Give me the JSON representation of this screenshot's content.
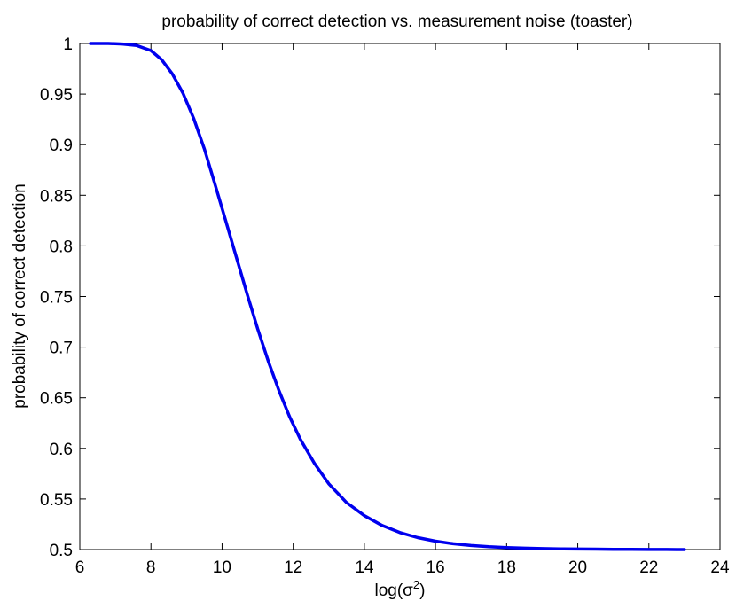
{
  "chart_data": {
    "type": "line",
    "title": "probability of correct detection vs. measurement noise (toaster)",
    "xlabel_base": "log(σ",
    "xlabel_sup": "2",
    "xlabel_tail": ")",
    "ylabel": "probability of correct detection",
    "xlim": [
      6,
      24
    ],
    "ylim": [
      0.5,
      1
    ],
    "xticks": [
      6,
      8,
      10,
      12,
      14,
      16,
      18,
      20,
      22,
      24
    ],
    "yticks": [
      0.5,
      0.55,
      0.6,
      0.65,
      0.7,
      0.75,
      0.8,
      0.85,
      0.9,
      0.95,
      1
    ],
    "ytick_labels": [
      "0.5",
      "0.55",
      "0.6",
      "0.65",
      "0.7",
      "0.75",
      "0.8",
      "0.85",
      "0.9",
      "0.95",
      "1"
    ],
    "grid": false,
    "line_color": "#0000ee",
    "series": [
      {
        "x": [
          6.3,
          6.8,
          7.2,
          7.6,
          8.0,
          8.3,
          8.6,
          8.9,
          9.2,
          9.5,
          9.8,
          10.1,
          10.4,
          10.7,
          11.0,
          11.3,
          11.6,
          11.9,
          12.2,
          12.6,
          13.0,
          13.5,
          14.0,
          14.5,
          15.0,
          15.5,
          16.0,
          16.5,
          17.0,
          17.5,
          18.0,
          18.5,
          19.0,
          19.5,
          20.0,
          20.5,
          21.0,
          21.5,
          22.0,
          22.5,
          23.0
        ],
        "y": [
          1.0,
          1.0,
          0.9995,
          0.998,
          0.993,
          0.984,
          0.97,
          0.951,
          0.926,
          0.896,
          0.861,
          0.825,
          0.789,
          0.753,
          0.718,
          0.686,
          0.657,
          0.631,
          0.609,
          0.585,
          0.565,
          0.5465,
          0.5335,
          0.5238,
          0.5168,
          0.5118,
          0.5083,
          0.5058,
          0.504,
          0.5028,
          0.502,
          0.5014,
          0.501,
          0.5007,
          0.5005,
          0.5004,
          0.5003,
          0.5002,
          0.5001,
          0.5001,
          0.5
        ]
      }
    ]
  }
}
